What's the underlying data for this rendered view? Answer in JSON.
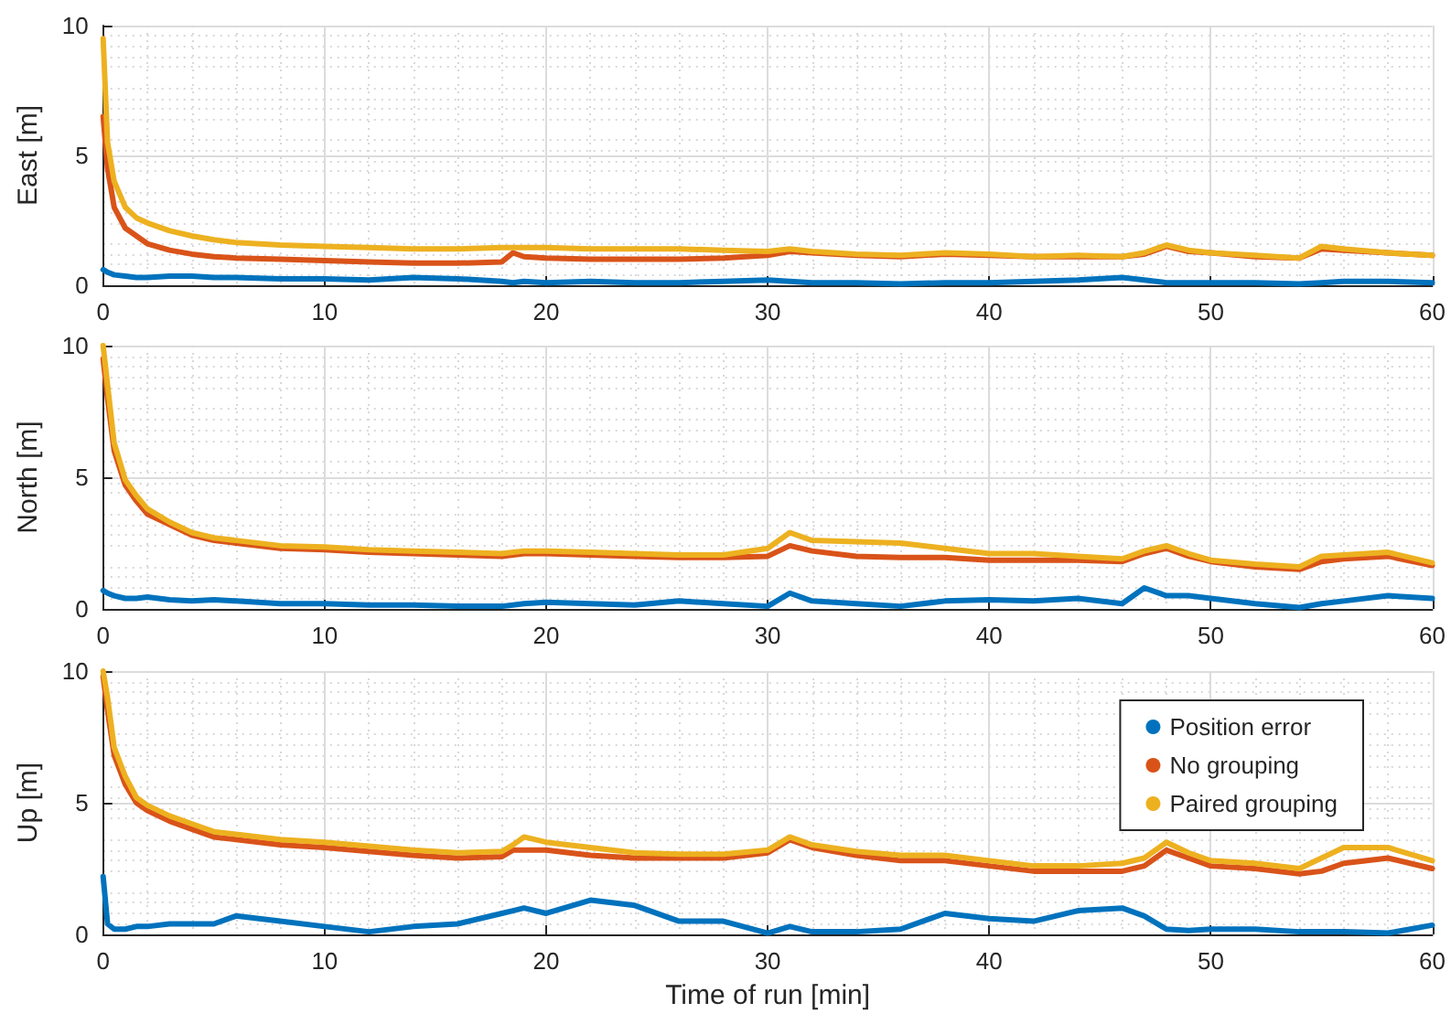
{
  "chart_data": [
    {
      "type": "line",
      "ylabel": "East [m]",
      "xlim": [
        0,
        60
      ],
      "xticks": [
        0,
        10,
        20,
        30,
        40,
        50,
        60
      ],
      "ylim": [
        0,
        10
      ],
      "yticks": [
        0,
        5,
        10
      ],
      "grid": true,
      "legend": false,
      "line_style": "solid",
      "x": [
        0,
        0.2,
        0.5,
        1,
        1.5,
        2,
        3,
        4,
        5,
        6,
        8,
        10,
        12,
        14,
        16,
        18,
        18.5,
        19,
        20,
        22,
        24,
        26,
        28,
        30,
        31,
        32,
        34,
        36,
        38,
        40,
        42,
        44,
        46,
        47,
        48,
        49,
        50,
        52,
        54,
        55,
        56,
        58,
        60
      ],
      "series": [
        {
          "color": "#0072bd",
          "values": [
            0.6,
            0.5,
            0.4,
            0.35,
            0.3,
            0.3,
            0.35,
            0.35,
            0.3,
            0.3,
            0.25,
            0.25,
            0.2,
            0.3,
            0.25,
            0.15,
            0.1,
            0.15,
            0.1,
            0.15,
            0.1,
            0.1,
            0.15,
            0.2,
            0.15,
            0.1,
            0.1,
            0.05,
            0.1,
            0.1,
            0.15,
            0.2,
            0.3,
            0.2,
            0.1,
            0.1,
            0.1,
            0.1,
            0.05,
            0.1,
            0.15,
            0.15,
            0.1
          ]
        },
        {
          "color": "#d95319",
          "values": [
            6.5,
            4.5,
            3,
            2.2,
            1.9,
            1.6,
            1.35,
            1.2,
            1.1,
            1.05,
            1.0,
            0.95,
            0.9,
            0.85,
            0.85,
            0.9,
            1.25,
            1.1,
            1.05,
            1.0,
            1.0,
            1.0,
            1.05,
            1.15,
            1.3,
            1.25,
            1.15,
            1.1,
            1.2,
            1.15,
            1.1,
            1.1,
            1.1,
            1.2,
            1.5,
            1.3,
            1.25,
            1.1,
            1.05,
            1.4,
            1.35,
            1.25,
            1.15
          ]
        },
        {
          "color": "#edb120",
          "values": [
            9.5,
            5.5,
            4,
            3,
            2.6,
            2.4,
            2.1,
            1.9,
            1.75,
            1.65,
            1.55,
            1.5,
            1.45,
            1.4,
            1.4,
            1.45,
            1.45,
            1.45,
            1.45,
            1.4,
            1.4,
            1.4,
            1.35,
            1.3,
            1.4,
            1.3,
            1.2,
            1.15,
            1.25,
            1.2,
            1.1,
            1.15,
            1.1,
            1.25,
            1.55,
            1.35,
            1.25,
            1.15,
            1.05,
            1.5,
            1.4,
            1.25,
            1.15
          ]
        }
      ]
    },
    {
      "type": "line",
      "ylabel": "North [m]",
      "xlim": [
        0,
        60
      ],
      "xticks": [
        0,
        10,
        20,
        30,
        40,
        50,
        60
      ],
      "ylim": [
        0,
        10
      ],
      "yticks": [
        0,
        5,
        10
      ],
      "grid": true,
      "legend": false,
      "line_style": "solid",
      "x": [
        0,
        0.2,
        0.5,
        1,
        1.5,
        2,
        3,
        4,
        5,
        6,
        8,
        10,
        12,
        14,
        16,
        18,
        18.5,
        19,
        20,
        22,
        24,
        26,
        28,
        30,
        31,
        32,
        34,
        36,
        38,
        40,
        42,
        44,
        46,
        47,
        48,
        49,
        50,
        52,
        54,
        55,
        56,
        58,
        60
      ],
      "series": [
        {
          "color": "#0072bd",
          "values": [
            0.7,
            0.6,
            0.5,
            0.4,
            0.4,
            0.45,
            0.35,
            0.3,
            0.35,
            0.3,
            0.2,
            0.2,
            0.15,
            0.15,
            0.1,
            0.1,
            0.15,
            0.2,
            0.25,
            0.2,
            0.15,
            0.3,
            0.2,
            0.1,
            0.6,
            0.3,
            0.2,
            0.1,
            0.3,
            0.35,
            0.3,
            0.4,
            0.2,
            0.8,
            0.5,
            0.5,
            0.4,
            0.2,
            0.05,
            0.2,
            0.3,
            0.5,
            0.4
          ]
        },
        {
          "color": "#d95319",
          "values": [
            9.5,
            8,
            6,
            4.7,
            4.1,
            3.6,
            3.2,
            2.8,
            2.6,
            2.5,
            2.3,
            2.25,
            2.15,
            2.1,
            2.05,
            2.0,
            2.05,
            2.1,
            2.1,
            2.05,
            2.0,
            1.95,
            1.95,
            2.0,
            2.4,
            2.2,
            2.0,
            1.95,
            1.95,
            1.85,
            1.85,
            1.85,
            1.8,
            2.1,
            2.3,
            2.0,
            1.8,
            1.6,
            1.5,
            1.8,
            1.9,
            2.0,
            1.65
          ]
        },
        {
          "color": "#edb120",
          "values": [
            10,
            8.5,
            6.3,
            4.9,
            4.3,
            3.8,
            3.3,
            2.9,
            2.7,
            2.6,
            2.4,
            2.35,
            2.25,
            2.2,
            2.15,
            2.1,
            2.15,
            2.2,
            2.2,
            2.15,
            2.1,
            2.05,
            2.05,
            2.3,
            2.9,
            2.6,
            2.55,
            2.5,
            2.3,
            2.1,
            2.1,
            2.0,
            1.9,
            2.2,
            2.4,
            2.1,
            1.85,
            1.7,
            1.6,
            2.0,
            2.05,
            2.15,
            1.75
          ]
        }
      ]
    },
    {
      "type": "line",
      "ylabel": "Up [m]",
      "xlabel": "Time of run [min]",
      "xlim": [
        0,
        60
      ],
      "xticks": [
        0,
        10,
        20,
        30,
        40,
        50,
        60
      ],
      "ylim": [
        0,
        10
      ],
      "yticks": [
        0,
        5,
        10
      ],
      "grid": true,
      "legend": "top right",
      "line_style": "solid",
      "x": [
        0,
        0.2,
        0.5,
        1,
        1.5,
        2,
        3,
        4,
        5,
        6,
        8,
        10,
        12,
        14,
        16,
        18,
        18.5,
        19,
        20,
        22,
        24,
        26,
        28,
        30,
        31,
        32,
        34,
        36,
        38,
        40,
        42,
        44,
        46,
        47,
        48,
        49,
        50,
        52,
        54,
        55,
        56,
        58,
        60
      ],
      "series": [
        {
          "name": "Position error",
          "color": "#0072bd",
          "values": [
            2.2,
            0.4,
            0.2,
            0.2,
            0.3,
            0.3,
            0.4,
            0.4,
            0.4,
            0.7,
            0.5,
            0.3,
            0.1,
            0.3,
            0.4,
            0.8,
            0.9,
            1.0,
            0.8,
            1.3,
            1.1,
            0.5,
            0.5,
            0.05,
            0.3,
            0.1,
            0.1,
            0.2,
            0.8,
            0.6,
            0.5,
            0.9,
            1.0,
            0.7,
            0.2,
            0.15,
            0.2,
            0.2,
            0.1,
            0.1,
            0.1,
            0.05,
            0.35
          ]
        },
        {
          "name": "No grouping",
          "color": "#d95319",
          "values": [
            9.8,
            8.5,
            6.8,
            5.7,
            5.0,
            4.7,
            4.3,
            4.0,
            3.7,
            3.6,
            3.4,
            3.3,
            3.15,
            3.0,
            2.9,
            2.95,
            3.2,
            3.2,
            3.2,
            3.0,
            2.9,
            2.9,
            2.9,
            3.1,
            3.6,
            3.3,
            3.0,
            2.8,
            2.8,
            2.6,
            2.4,
            2.4,
            2.4,
            2.6,
            3.2,
            2.9,
            2.6,
            2.5,
            2.3,
            2.4,
            2.7,
            2.9,
            2.5
          ]
        },
        {
          "name": "Paired grouping",
          "color": "#edb120",
          "values": [
            10,
            9,
            7.1,
            6.0,
            5.2,
            4.9,
            4.5,
            4.2,
            3.9,
            3.8,
            3.6,
            3.5,
            3.35,
            3.2,
            3.1,
            3.15,
            3.4,
            3.7,
            3.5,
            3.3,
            3.1,
            3.05,
            3.05,
            3.2,
            3.7,
            3.4,
            3.15,
            3.0,
            3.0,
            2.8,
            2.6,
            2.6,
            2.7,
            2.9,
            3.5,
            3.1,
            2.8,
            2.7,
            2.5,
            2.9,
            3.3,
            3.3,
            2.8
          ]
        }
      ]
    }
  ]
}
